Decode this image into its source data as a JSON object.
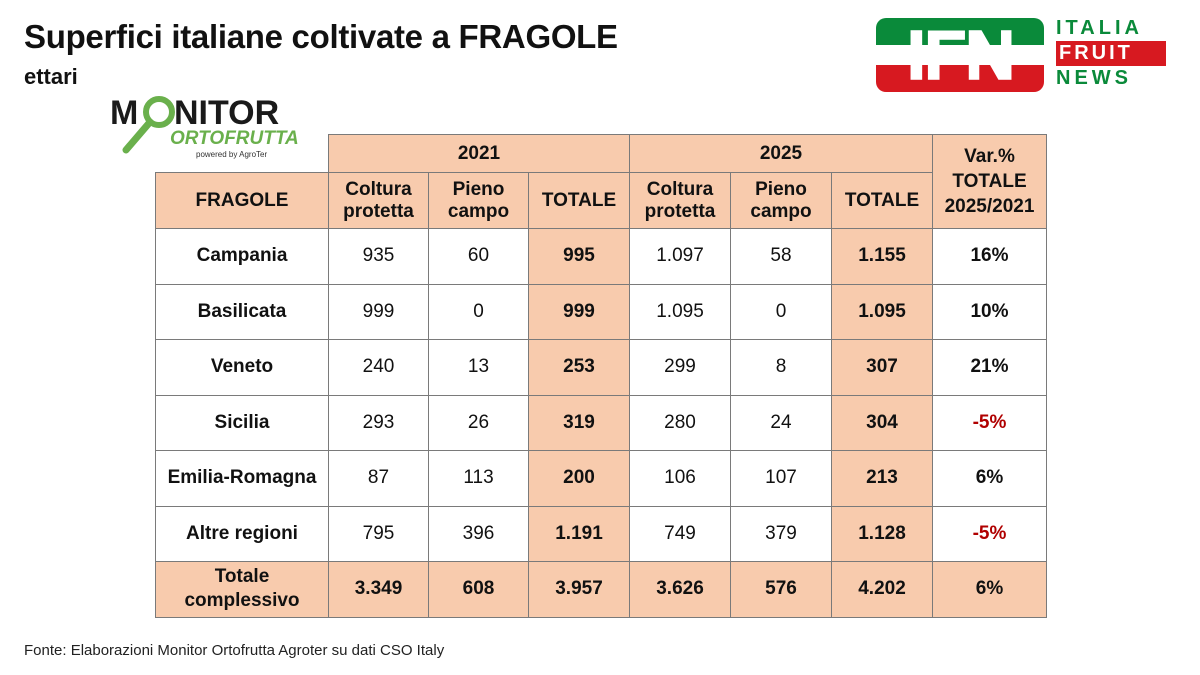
{
  "title": "Superfici italiane coltivate a FRAGOLE",
  "subtitle": "ettari",
  "logo_monitor": {
    "line1_pre": "M",
    "line1_post": "NITOR",
    "line2": "ORTOFRUTTA",
    "line3": "powered by AgroTer"
  },
  "logo_ifn": {
    "letters": "IFN",
    "word1": "ITALIA",
    "word2": "FRUIT",
    "word3": "NEWS"
  },
  "colors": {
    "header_fill": "#f8cbad",
    "negative": "#b00000",
    "ifn_green": "#0a8a3a",
    "ifn_red": "#d71920",
    "monitor_green": "#6ab04c"
  },
  "source": "Fonte: Elaborazioni Monitor Ortofrutta Agroter su dati CSO Italy",
  "chart_data": {
    "type": "table",
    "year_groups": [
      "2021",
      "2025"
    ],
    "var_header": "Var.%\nTOTALE\n2025/2021",
    "row_header": "FRAGOLE",
    "sub_headers": [
      "Coltura protetta",
      "Pieno campo",
      "TOTALE"
    ],
    "rows": [
      {
        "region": "Campania",
        "c2021": "935",
        "p2021": "60",
        "t2021": "995",
        "c2025": "1.097",
        "p2025": "58",
        "t2025": "1.155",
        "var": "16%"
      },
      {
        "region": "Basilicata",
        "c2021": "999",
        "p2021": "0",
        "t2021": "999",
        "c2025": "1.095",
        "p2025": "0",
        "t2025": "1.095",
        "var": "10%"
      },
      {
        "region": "Veneto",
        "c2021": "240",
        "p2021": "13",
        "t2021": "253",
        "c2025": "299",
        "p2025": "8",
        "t2025": "307",
        "var": "21%"
      },
      {
        "region": "Sicilia",
        "c2021": "293",
        "p2021": "26",
        "t2021": "319",
        "c2025": "280",
        "p2025": "24",
        "t2025": "304",
        "var": "-5%"
      },
      {
        "region": "Emilia-Romagna",
        "c2021": "87",
        "p2021": "113",
        "t2021": "200",
        "c2025": "106",
        "p2025": "107",
        "t2025": "213",
        "var": "6%"
      },
      {
        "region": "Altre regioni",
        "c2021": "795",
        "p2021": "396",
        "t2021": "1.191",
        "c2025": "749",
        "p2025": "379",
        "t2025": "1.128",
        "var": "-5%"
      }
    ],
    "total_row": {
      "region": "Totale\ncomplessivo",
      "c2021": "3.349",
      "p2021": "608",
      "t2021": "3.957",
      "c2025": "3.626",
      "p2025": "576",
      "t2025": "4.202",
      "var": "6%"
    }
  }
}
